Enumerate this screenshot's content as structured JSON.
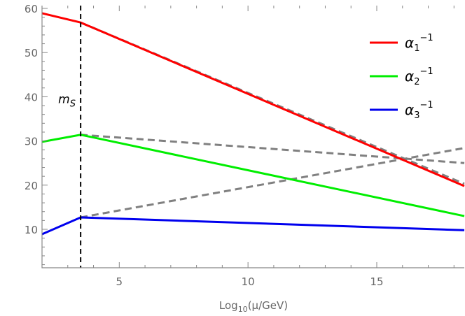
{
  "chart_data": {
    "type": "line",
    "title": "",
    "xlabel": {
      "base": "Log",
      "sub": "10",
      "rest": "(μ/GeV)"
    },
    "ylabel": "",
    "xlim": [
      2,
      18.4
    ],
    "ylim": [
      1.3,
      60
    ],
    "x_ticks": [
      5,
      10,
      15
    ],
    "y_ticks": [
      10,
      20,
      30,
      40,
      50,
      60
    ],
    "grid": false,
    "legend_placement": "top-right",
    "vline": {
      "x": 3.5,
      "label_base": "m",
      "label_sub": "S",
      "color": "#000000"
    },
    "series": [
      {
        "name": "α1^-1",
        "label_base": "α",
        "label_sub": "1",
        "label_sup": "−1",
        "color": "#ff0000",
        "style": "solid",
        "points": [
          [
            2,
            58.9
          ],
          [
            3.5,
            56.8
          ],
          [
            18.4,
            19.8
          ]
        ]
      },
      {
        "name": "α2^-1",
        "label_base": "α",
        "label_sub": "2",
        "label_sup": "−1",
        "color": "#00ee00",
        "style": "solid",
        "points": [
          [
            2,
            29.8
          ],
          [
            3.5,
            31.4
          ],
          [
            18.4,
            13.0
          ]
        ]
      },
      {
        "name": "α3^-1",
        "label_base": "α",
        "label_sub": "3",
        "label_sup": "−1",
        "color": "#0000ee",
        "style": "solid",
        "points": [
          [
            2,
            8.9
          ],
          [
            3.5,
            12.7
          ],
          [
            18.4,
            9.8
          ]
        ]
      }
    ],
    "dashed_series": [
      {
        "color": "#808080",
        "points": [
          [
            3.5,
            56.8
          ],
          [
            18.4,
            20.3
          ]
        ]
      },
      {
        "color": "#808080",
        "points": [
          [
            3.5,
            31.4
          ],
          [
            18.4,
            25.0
          ]
        ]
      },
      {
        "color": "#808080",
        "points": [
          [
            3.5,
            12.7
          ],
          [
            18.4,
            28.4
          ]
        ]
      }
    ]
  }
}
